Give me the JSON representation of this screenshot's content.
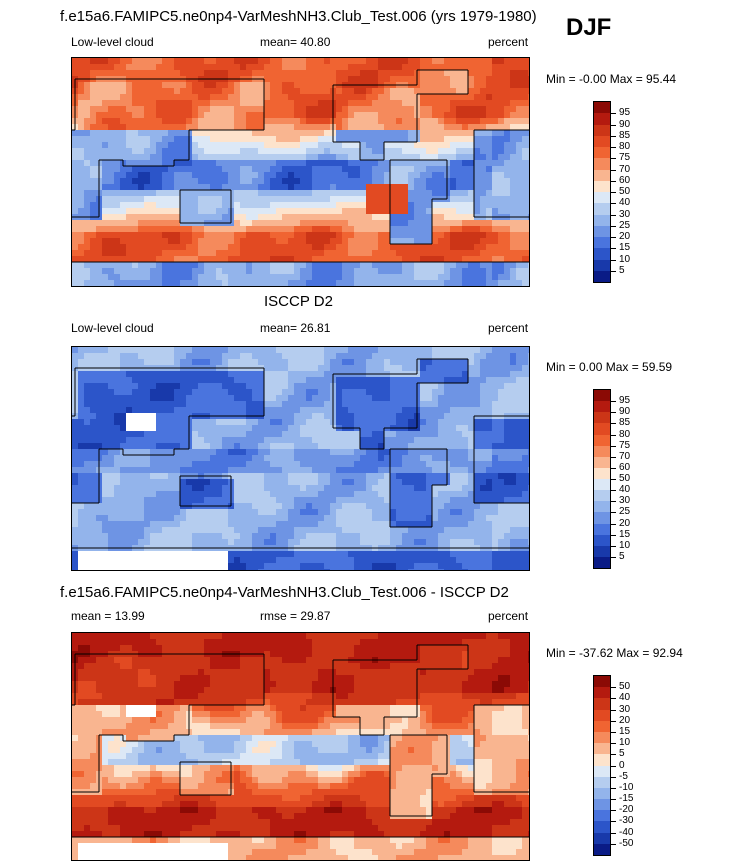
{
  "season": "DJF",
  "panels": [
    {
      "title": "f.e15a6.FAMIPC5.ne0np4-VarMeshNH3.Club_Test.006 (yrs 1979-1980)",
      "left_label": "Low-level cloud",
      "center_label": "mean=  40.80",
      "right_label": "percent",
      "minmax": "Min =  -0.00 Max =  95.44",
      "field": "model",
      "levels": [
        "95",
        "90",
        "85",
        "80",
        "75",
        "70",
        "60",
        "50",
        "40",
        "30",
        "25",
        "20",
        "15",
        "10",
        "5"
      ],
      "colors": [
        "#8b0a05",
        "#b41a0f",
        "#cc3517",
        "#e24a22",
        "#f06432",
        "#f58a5c",
        "#f9b590",
        "#fde3cc",
        "#dce8f6",
        "#b5cdef",
        "#93b4eb",
        "#6e94e4",
        "#4a74de",
        "#2c55c9",
        "#1839aa",
        "#0a1b86"
      ]
    },
    {
      "title": "ISCCP D2",
      "left_label": "Low-level cloud",
      "center_label": "mean=  26.81",
      "right_label": "percent",
      "minmax": "Min =   0.00 Max =  59.59",
      "field": "obs",
      "levels": [
        "95",
        "90",
        "85",
        "80",
        "75",
        "70",
        "60",
        "50",
        "40",
        "30",
        "25",
        "20",
        "15",
        "10",
        "5"
      ],
      "colors": [
        "#8b0a05",
        "#b41a0f",
        "#cc3517",
        "#e24a22",
        "#f06432",
        "#f58a5c",
        "#f9b590",
        "#fde3cc",
        "#dce8f6",
        "#b5cdef",
        "#93b4eb",
        "#6e94e4",
        "#4a74de",
        "#2c55c9",
        "#1839aa",
        "#0a1b86"
      ]
    },
    {
      "title": "f.e15a6.FAMIPC5.ne0np4-VarMeshNH3.Club_Test.006 - ISCCP D2",
      "left_label": "mean =  13.99",
      "center_label": "rmse =  29.87",
      "right_label": "percent",
      "minmax": "Min = -37.62 Max =  92.94",
      "field": "diff",
      "levels": [
        "50",
        "40",
        "30",
        "20",
        "15",
        "10",
        "5",
        "0",
        "-5",
        "-10",
        "-15",
        "-20",
        "-30",
        "-40",
        "-50"
      ],
      "colors": [
        "#8b0a05",
        "#b41a0f",
        "#cc3517",
        "#e24a22",
        "#f06432",
        "#f58a5c",
        "#f9b590",
        "#fde3cc",
        "#dce8f6",
        "#b5cdef",
        "#93b4eb",
        "#6e94e4",
        "#4a74de",
        "#2c55c9",
        "#1839aa",
        "#0a1b86"
      ]
    }
  ]
}
